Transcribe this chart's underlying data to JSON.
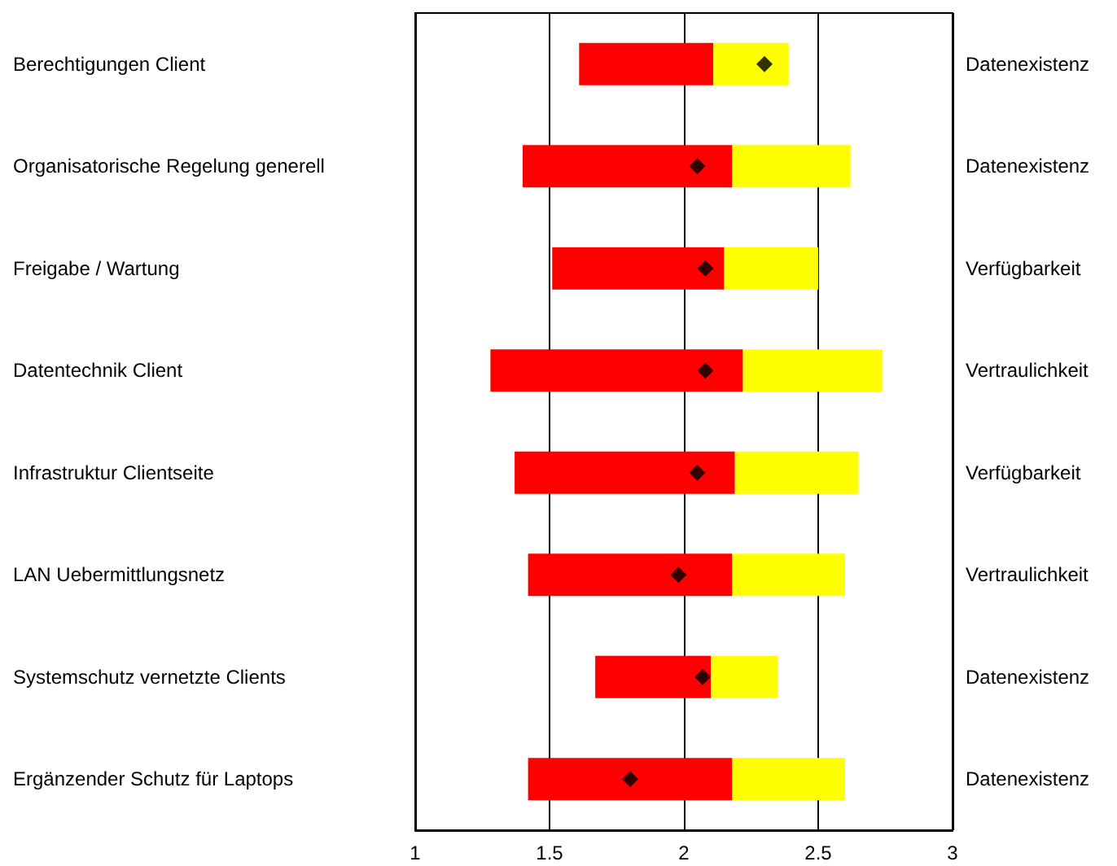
{
  "chart_data": {
    "type": "bar",
    "orientation": "horizontal",
    "categories": [
      "Berechtigungen Client",
      "Organisatorische Regelung generell",
      "Freigabe / Wartung",
      "Datentechnik Client",
      "Infrastruktur Clientseite",
      "LAN Uebermittlungsnetz",
      "Systemschutz vernetzte Clients",
      "Ergänzender Schutz für Laptops"
    ],
    "y2_categories": [
      "Datenexistenz",
      "Datenexistenz",
      "Verfügbarkeit",
      "Vertraulichkeit",
      "Verfügbarkeit",
      "Vertraulichkeit",
      "Datenexistenz",
      "Datenexistenz"
    ],
    "series": [
      {
        "color": "#ff0000",
        "base": [
          1.61,
          1.4,
          1.51,
          1.28,
          1.37,
          1.42,
          1.67,
          1.42
        ],
        "values": [
          0.5,
          0.78,
          0.64,
          0.94,
          0.82,
          0.76,
          0.43,
          0.76
        ]
      },
      {
        "color": "#ffff00",
        "base": [
          2.11,
          2.18,
          2.15,
          2.22,
          2.19,
          2.18,
          2.1,
          2.18
        ],
        "values": [
          0.28,
          0.44,
          0.35,
          0.52,
          0.46,
          0.42,
          0.25,
          0.42
        ]
      },
      {
        "type": "scatter",
        "color": "#000000",
        "marker": "diamond",
        "values": [
          2.3,
          2.05,
          2.08,
          2.08,
          2.05,
          1.98,
          2.07,
          1.8
        ]
      }
    ],
    "xlim": [
      1,
      3
    ],
    "xticks": [
      1,
      1.5,
      2,
      2.5,
      3
    ],
    "grid": "x"
  }
}
